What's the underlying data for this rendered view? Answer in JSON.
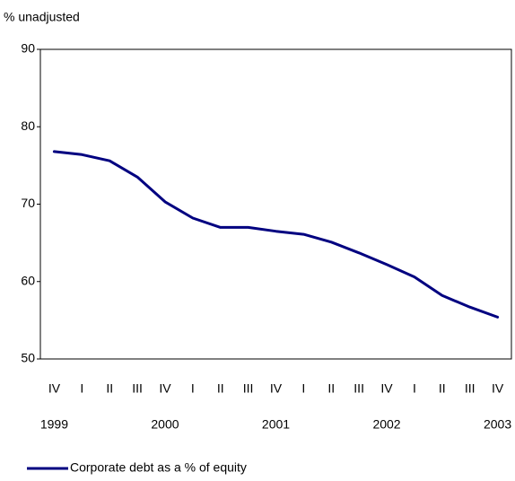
{
  "chart_data": {
    "type": "line",
    "y_axis_label": "% unadjusted",
    "categories": [
      "IV",
      "I",
      "II",
      "III",
      "IV",
      "I",
      "II",
      "III",
      "IV",
      "I",
      "II",
      "III",
      "IV",
      "I",
      "II",
      "III",
      "IV"
    ],
    "year_labels": [
      "1999",
      "2000",
      "2001",
      "2002",
      "2003"
    ],
    "series": [
      {
        "name": "Corporate debt as a % of equity",
        "color": "#000080",
        "values": [
          76.8,
          76.4,
          75.6,
          73.5,
          70.3,
          68.2,
          67.0,
          67.0,
          66.5,
          66.1,
          65.1,
          63.7,
          62.2,
          60.6,
          58.2,
          56.7,
          55.4
        ]
      }
    ],
    "ylim": [
      50,
      90
    ],
    "yticks": [
      50,
      60,
      70,
      80,
      90
    ],
    "grid": false
  }
}
